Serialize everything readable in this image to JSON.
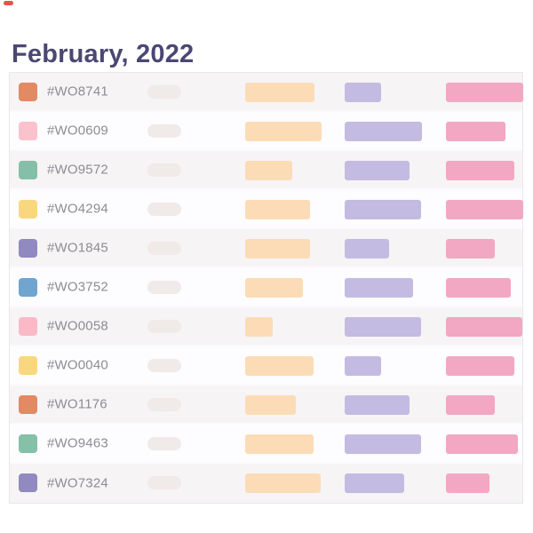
{
  "header": {
    "title": "February, 2022"
  },
  "colors": {
    "brand-mark": "#e4544a",
    "title-text": "#4a4872",
    "id-text": "#8e8c92",
    "table-border": "#e9e7ec",
    "row-odd-bg": "#f6f4f5",
    "row-even-bg": "#fdfcfe",
    "pill": "#f0eae9",
    "orange-bar": "#fcdcb7",
    "purple-bar": "#c4bbe2",
    "pink-bar": "#f2a8c2"
  },
  "table": {
    "row_description": "work-order row: color swatch, id, skeleton pill, three schedule bars (orange, purple, pink)",
    "rows": [
      {
        "id": "#WO8741",
        "swatch": "#e18a64",
        "pill_w": 38,
        "bars": {
          "orange": 78,
          "purple": 41,
          "pink": 87
        }
      },
      {
        "id": "#WO0609",
        "swatch": "#fbc2cd",
        "pill_w": 38,
        "bars": {
          "orange": 86,
          "purple": 87,
          "pink": 67
        }
      },
      {
        "id": "#WO9572",
        "swatch": "#84bfaa",
        "pill_w": 38,
        "bars": {
          "orange": 53,
          "purple": 73,
          "pink": 77
        }
      },
      {
        "id": "#WO4294",
        "swatch": "#f9d77e",
        "pill_w": 38,
        "bars": {
          "orange": 73,
          "purple": 86,
          "pink": 87
        }
      },
      {
        "id": "#WO1845",
        "swatch": "#918ac0",
        "pill_w": 38,
        "bars": {
          "orange": 73,
          "purple": 50,
          "pink": 55
        }
      },
      {
        "id": "#WO3752",
        "swatch": "#6fa5cf",
        "pill_w": 38,
        "bars": {
          "orange": 65,
          "purple": 77,
          "pink": 73
        }
      },
      {
        "id": "#WO0058",
        "swatch": "#fbb9c8",
        "pill_w": 38,
        "bars": {
          "orange": 31,
          "purple": 86,
          "pink": 86
        }
      },
      {
        "id": "#WO0040",
        "swatch": "#f9d77e",
        "pill_w": 38,
        "bars": {
          "orange": 77,
          "purple": 41,
          "pink": 77
        }
      },
      {
        "id": "#WO1176",
        "swatch": "#e18a64",
        "pill_w": 38,
        "bars": {
          "orange": 57,
          "purple": 73,
          "pink": 55
        }
      },
      {
        "id": "#WO9463",
        "swatch": "#85c0a8",
        "pill_w": 38,
        "bars": {
          "orange": 77,
          "purple": 86,
          "pink": 81
        }
      },
      {
        "id": "#WO7324",
        "swatch": "#918ac0",
        "pill_w": 38,
        "bars": {
          "orange": 85,
          "purple": 67,
          "pink": 49
        }
      }
    ]
  }
}
